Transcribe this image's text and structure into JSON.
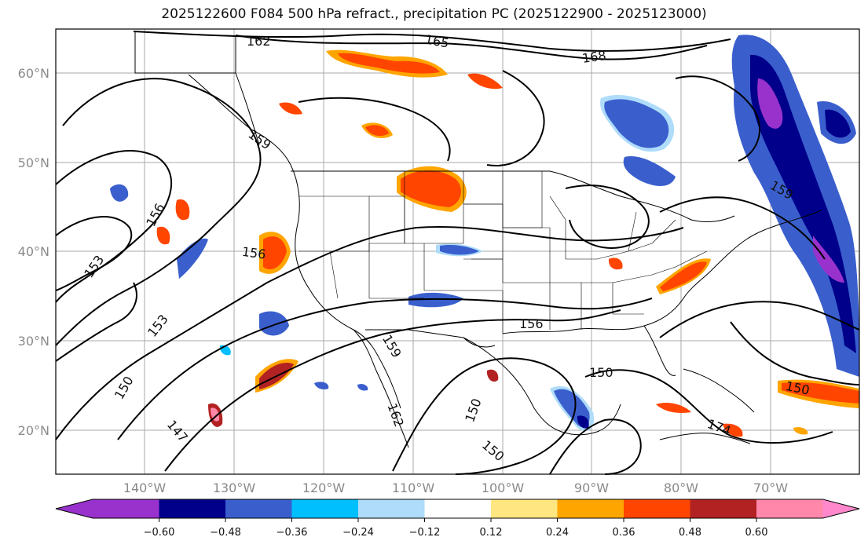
{
  "title": "2025122600 F084 500 hPa refract., precipitation PC (2025122900 - 2025123000)",
  "map": {
    "lat_ticks": [
      "60°N",
      "50°N",
      "40°N",
      "30°N",
      "20°N"
    ],
    "lon_ticks": [
      "140°W",
      "130°W",
      "120°W",
      "110°W",
      "100°W",
      "90°W",
      "80°W",
      "70°W"
    ],
    "contour_labels": [
      "162",
      "165",
      "168",
      "159",
      "156",
      "153",
      "156",
      "153",
      "150",
      "147",
      "159",
      "162",
      "150",
      "150",
      "150",
      "156",
      "150",
      "159",
      "174"
    ]
  },
  "colorbar": {
    "ticks": [
      "−0.60",
      "−0.48",
      "−0.36",
      "−0.24",
      "−0.12",
      "0.12",
      "0.24",
      "0.36",
      "0.48",
      "0.60"
    ],
    "colors": [
      "#9932cc",
      "#00008b",
      "#3a5fcd",
      "#00bfff",
      "#afdcfa",
      "#ffffff",
      "#ffe680",
      "#ffa500",
      "#ff4500",
      "#b22222",
      "#ff88aa",
      "#ff88cc"
    ]
  }
}
